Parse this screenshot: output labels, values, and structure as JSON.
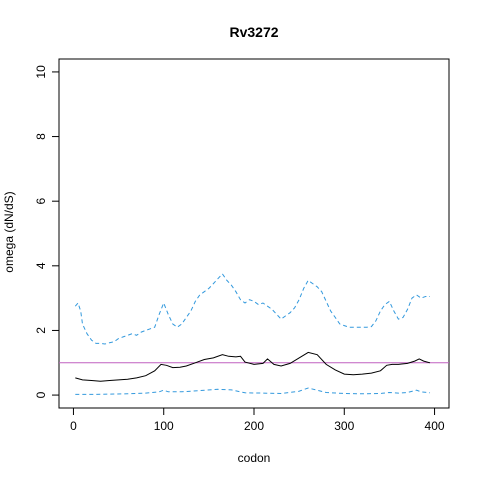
{
  "chart_data": {
    "type": "line",
    "title": "Rv3272",
    "xlabel": "codon",
    "ylabel": "omega (dN/dS)",
    "xlim": [
      0,
      400
    ],
    "ylim": [
      0,
      10
    ],
    "x_ticks": [
      0,
      100,
      200,
      300,
      400
    ],
    "y_ticks": [
      0,
      2,
      4,
      6,
      8,
      10
    ],
    "reference_line": {
      "y": 1,
      "color": "#c060c0"
    },
    "series": [
      {
        "style": "solid",
        "color": "#000000",
        "points": [
          [
            2,
            0.53
          ],
          [
            10,
            0.47
          ],
          [
            20,
            0.45
          ],
          [
            30,
            0.43
          ],
          [
            40,
            0.45
          ],
          [
            50,
            0.47
          ],
          [
            60,
            0.49
          ],
          [
            70,
            0.53
          ],
          [
            80,
            0.6
          ],
          [
            90,
            0.75
          ],
          [
            97,
            0.95
          ],
          [
            103,
            0.92
          ],
          [
            110,
            0.85
          ],
          [
            118,
            0.86
          ],
          [
            125,
            0.9
          ],
          [
            135,
            1.0
          ],
          [
            145,
            1.1
          ],
          [
            155,
            1.15
          ],
          [
            165,
            1.25
          ],
          [
            172,
            1.2
          ],
          [
            180,
            1.18
          ],
          [
            185,
            1.2
          ],
          [
            190,
            1.02
          ],
          [
            200,
            0.95
          ],
          [
            210,
            0.98
          ],
          [
            215,
            1.12
          ],
          [
            222,
            0.95
          ],
          [
            230,
            0.9
          ],
          [
            240,
            0.98
          ],
          [
            250,
            1.15
          ],
          [
            260,
            1.32
          ],
          [
            270,
            1.25
          ],
          [
            280,
            0.95
          ],
          [
            290,
            0.78
          ],
          [
            300,
            0.65
          ],
          [
            310,
            0.63
          ],
          [
            320,
            0.65
          ],
          [
            330,
            0.68
          ],
          [
            340,
            0.75
          ],
          [
            347,
            0.92
          ],
          [
            353,
            0.95
          ],
          [
            360,
            0.95
          ],
          [
            370,
            0.98
          ],
          [
            378,
            1.05
          ],
          [
            383,
            1.12
          ],
          [
            388,
            1.05
          ],
          [
            395,
            1.0
          ]
        ]
      },
      {
        "style": "dashed",
        "color": "#3399dd",
        "points": [
          [
            2,
            2.75
          ],
          [
            5,
            2.85
          ],
          [
            8,
            2.6
          ],
          [
            10,
            2.2
          ],
          [
            15,
            1.9
          ],
          [
            20,
            1.7
          ],
          [
            25,
            1.6
          ],
          [
            30,
            1.6
          ],
          [
            35,
            1.58
          ],
          [
            40,
            1.62
          ],
          [
            45,
            1.65
          ],
          [
            50,
            1.75
          ],
          [
            55,
            1.8
          ],
          [
            60,
            1.85
          ],
          [
            65,
            1.9
          ],
          [
            70,
            1.85
          ],
          [
            75,
            1.95
          ],
          [
            80,
            2.0
          ],
          [
            85,
            2.05
          ],
          [
            90,
            2.1
          ],
          [
            95,
            2.5
          ],
          [
            100,
            2.85
          ],
          [
            105,
            2.5
          ],
          [
            110,
            2.2
          ],
          [
            115,
            2.1
          ],
          [
            120,
            2.2
          ],
          [
            125,
            2.4
          ],
          [
            130,
            2.6
          ],
          [
            135,
            2.9
          ],
          [
            140,
            3.1
          ],
          [
            145,
            3.2
          ],
          [
            150,
            3.3
          ],
          [
            155,
            3.45
          ],
          [
            160,
            3.6
          ],
          [
            165,
            3.75
          ],
          [
            170,
            3.55
          ],
          [
            175,
            3.4
          ],
          [
            180,
            3.2
          ],
          [
            185,
            2.95
          ],
          [
            190,
            2.85
          ],
          [
            195,
            2.95
          ],
          [
            200,
            2.9
          ],
          [
            205,
            2.8
          ],
          [
            210,
            2.85
          ],
          [
            215,
            2.75
          ],
          [
            220,
            2.65
          ],
          [
            225,
            2.5
          ],
          [
            230,
            2.35
          ],
          [
            235,
            2.45
          ],
          [
            240,
            2.55
          ],
          [
            245,
            2.7
          ],
          [
            250,
            2.95
          ],
          [
            255,
            3.3
          ],
          [
            260,
            3.55
          ],
          [
            265,
            3.45
          ],
          [
            270,
            3.35
          ],
          [
            275,
            3.2
          ],
          [
            280,
            2.9
          ],
          [
            285,
            2.6
          ],
          [
            290,
            2.4
          ],
          [
            295,
            2.2
          ],
          [
            300,
            2.15
          ],
          [
            305,
            2.1
          ],
          [
            310,
            2.1
          ],
          [
            315,
            2.1
          ],
          [
            320,
            2.1
          ],
          [
            325,
            2.1
          ],
          [
            330,
            2.12
          ],
          [
            335,
            2.3
          ],
          [
            340,
            2.6
          ],
          [
            345,
            2.8
          ],
          [
            350,
            2.9
          ],
          [
            355,
            2.6
          ],
          [
            360,
            2.35
          ],
          [
            365,
            2.4
          ],
          [
            370,
            2.65
          ],
          [
            375,
            3.0
          ],
          [
            380,
            3.1
          ],
          [
            385,
            3.0
          ],
          [
            390,
            3.05
          ],
          [
            395,
            3.05
          ]
        ]
      },
      {
        "style": "dashed",
        "color": "#3399dd",
        "points": [
          [
            2,
            0.02
          ],
          [
            20,
            0.02
          ],
          [
            40,
            0.03
          ],
          [
            60,
            0.04
          ],
          [
            80,
            0.06
          ],
          [
            95,
            0.1
          ],
          [
            100,
            0.15
          ],
          [
            105,
            0.1
          ],
          [
            120,
            0.1
          ],
          [
            140,
            0.14
          ],
          [
            160,
            0.18
          ],
          [
            175,
            0.16
          ],
          [
            190,
            0.07
          ],
          [
            210,
            0.06
          ],
          [
            230,
            0.05
          ],
          [
            250,
            0.12
          ],
          [
            260,
            0.22
          ],
          [
            270,
            0.15
          ],
          [
            280,
            0.08
          ],
          [
            300,
            0.05
          ],
          [
            320,
            0.04
          ],
          [
            340,
            0.05
          ],
          [
            350,
            0.08
          ],
          [
            360,
            0.06
          ],
          [
            370,
            0.08
          ],
          [
            380,
            0.15
          ],
          [
            385,
            0.1
          ],
          [
            395,
            0.07
          ]
        ]
      }
    ]
  }
}
